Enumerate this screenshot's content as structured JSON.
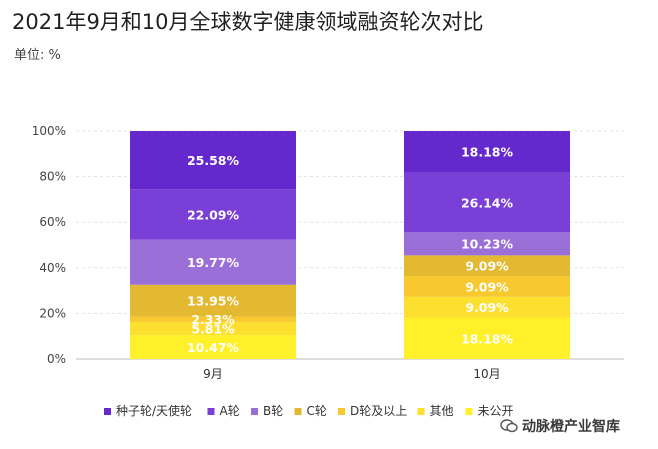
{
  "title": "2021年9月和10月全球数字健康领域融资轮次对比",
  "subtitle": "单位: %",
  "watermark": "动脉橙产业智库",
  "chart_data": {
    "type": "bar",
    "stacked": true,
    "categories": [
      "9月",
      "10月"
    ],
    "ylim": [
      0,
      100
    ],
    "yticks": [
      "0%",
      "20%",
      "40%",
      "60%",
      "80%",
      "100%"
    ],
    "grid": true,
    "legend_position": "bottom",
    "series": [
      {
        "name": "未公开",
        "color": "#fff02a",
        "values": [
          10.47,
          18.18
        ],
        "labels": [
          "10.47%",
          "18.18%"
        ]
      },
      {
        "name": "其他",
        "color": "#fde02f",
        "values": [
          5.81,
          9.09
        ],
        "labels": [
          "5.81%",
          "9.09%"
        ]
      },
      {
        "name": "D轮及以上",
        "color": "#f7c92e",
        "values": [
          2.33,
          9.09
        ],
        "labels": [
          "2.33%",
          "9.09%"
        ]
      },
      {
        "name": "C轮",
        "color": "#e2b931",
        "values": [
          13.95,
          9.09
        ],
        "labels": [
          "13.95%",
          "9.09%"
        ]
      },
      {
        "name": "B轮",
        "color": "#9b6fd8",
        "values": [
          19.77,
          10.23
        ],
        "labels": [
          "19.77%",
          "10.23%"
        ]
      },
      {
        "name": "A轮",
        "color": "#7a3fd6",
        "values": [
          22.09,
          26.14
        ],
        "labels": [
          "22.09%",
          "26.14%"
        ]
      },
      {
        "name": "种子轮/天使轮",
        "color": "#6528cc",
        "values": [
          25.58,
          18.18
        ],
        "labels": [
          "25.58%",
          "18.18%"
        ]
      }
    ],
    "legend_order": [
      "种子轮/天使轮",
      "A轮",
      "B轮",
      "C轮",
      "D轮及以上",
      "其他",
      "未公开"
    ]
  }
}
